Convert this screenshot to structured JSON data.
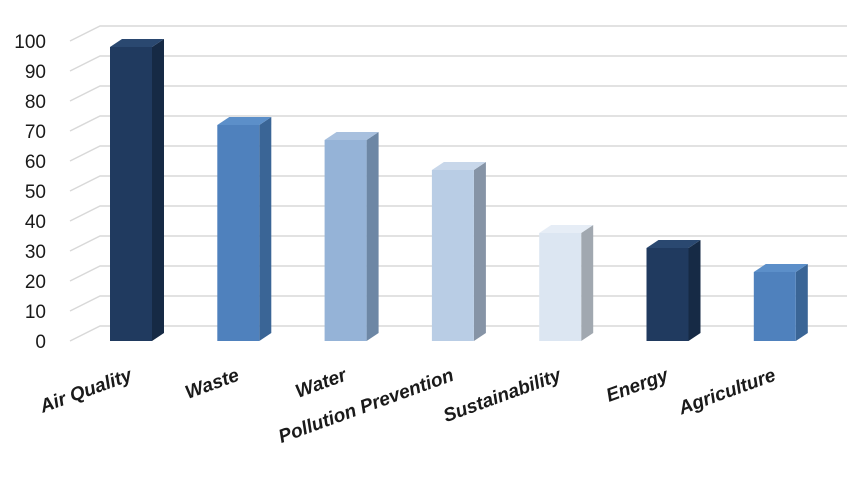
{
  "chart_data": {
    "type": "bar",
    "style": "3d-column",
    "categories": [
      "Air Quality",
      "Waste",
      "Water",
      "Pollution Prevention",
      "Sustainability",
      "Energy",
      "Agriculture"
    ],
    "values": [
      98,
      72,
      67,
      57,
      36,
      31,
      23
    ],
    "bar_colors": [
      {
        "front": "#203a5f",
        "side": "#162a45",
        "top": "#2a4870"
      },
      {
        "front": "#4f81bd",
        "side": "#3a6596",
        "top": "#5c8fc9"
      },
      {
        "front": "#95b3d7",
        "side": "#6d87a5",
        "top": "#a8c0de"
      },
      {
        "front": "#b9cde5",
        "side": "#8694a6",
        "top": "#c8d7ea"
      },
      {
        "front": "#dce6f2",
        "side": "#a1a8b0",
        "top": "#e6edf6"
      },
      {
        "front": "#203a5f",
        "side": "#162a45",
        "top": "#2a4870"
      },
      {
        "front": "#4f81bd",
        "side": "#3a6596",
        "top": "#5c8fc9"
      }
    ],
    "yticks": [
      "0",
      "10",
      "20",
      "30",
      "40",
      "50",
      "60",
      "70",
      "80",
      "90",
      "100"
    ],
    "ylim": [
      0,
      100
    ],
    "grid": true,
    "legend": "none",
    "title": "",
    "xlabel": "",
    "ylabel": ""
  }
}
